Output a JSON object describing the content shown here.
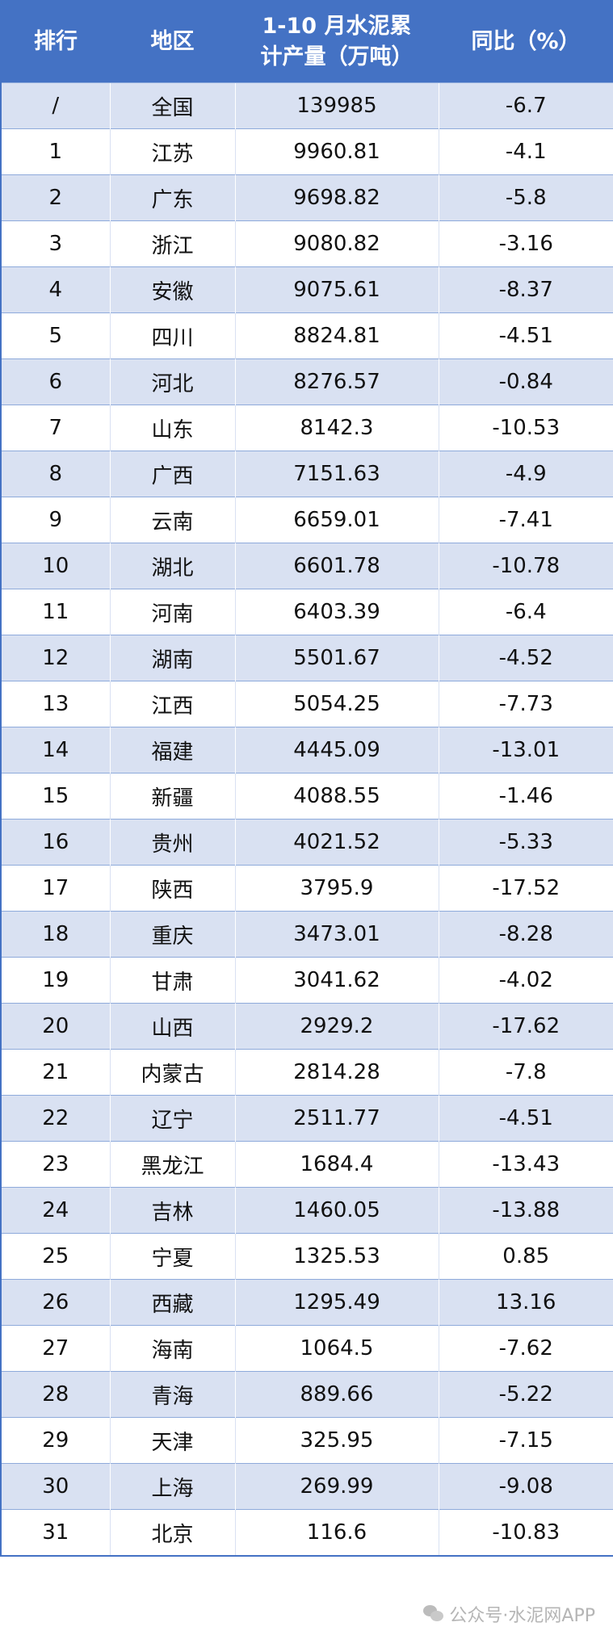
{
  "headers": [
    "排行",
    "地区",
    "1-10 月水泥累计产量（万吨）",
    "同比（%）"
  ],
  "rows": [
    [
      "/",
      "全国",
      "139985",
      "-6.7"
    ],
    [
      "1",
      "江苏",
      "9960.81",
      "-4.1"
    ],
    [
      "2",
      "广东",
      "9698.82",
      "-5.8"
    ],
    [
      "3",
      "浙江",
      "9080.82",
      "-3.16"
    ],
    [
      "4",
      "安徽",
      "9075.61",
      "-8.37"
    ],
    [
      "5",
      "四川",
      "8824.81",
      "-4.51"
    ],
    [
      "6",
      "河北",
      "8276.57",
      "-0.84"
    ],
    [
      "7",
      "山东",
      "8142.3",
      "-10.53"
    ],
    [
      "8",
      "广西",
      "7151.63",
      "-4.9"
    ],
    [
      "9",
      "云南",
      "6659.01",
      "-7.41"
    ],
    [
      "10",
      "湖北",
      "6601.78",
      "-10.78"
    ],
    [
      "11",
      "河南",
      "6403.39",
      "-6.4"
    ],
    [
      "12",
      "湖南",
      "5501.67",
      "-4.52"
    ],
    [
      "13",
      "江西",
      "5054.25",
      "-7.73"
    ],
    [
      "14",
      "福建",
      "4445.09",
      "-13.01"
    ],
    [
      "15",
      "新疆",
      "4088.55",
      "-1.46"
    ],
    [
      "16",
      "贵州",
      "4021.52",
      "-5.33"
    ],
    [
      "17",
      "陕西",
      "3795.9",
      "-17.52"
    ],
    [
      "18",
      "重庆",
      "3473.01",
      "-8.28"
    ],
    [
      "19",
      "甘肃",
      "3041.62",
      "-4.02"
    ],
    [
      "20",
      "山西",
      "2929.2",
      "-17.62"
    ],
    [
      "21",
      "内蒙古",
      "2814.28",
      "-7.8"
    ],
    [
      "22",
      "辽宁",
      "2511.77",
      "-4.51"
    ],
    [
      "23",
      "黑龙江",
      "1684.4",
      "-13.43"
    ],
    [
      "24",
      "吉林",
      "1460.05",
      "-13.88"
    ],
    [
      "25",
      "宁夏",
      "1325.53",
      "0.85"
    ],
    [
      "26",
      "西藏",
      "1295.49",
      "13.16"
    ],
    [
      "27",
      "海南",
      "1064.5",
      "-7.62"
    ],
    [
      "28",
      "青海",
      "889.66",
      "-5.22"
    ],
    [
      "29",
      "天津",
      "325.95",
      "-7.15"
    ],
    [
      "30",
      "上海",
      "269.99",
      "-9.08"
    ],
    [
      "31",
      "北京",
      "116.6",
      "-10.83"
    ]
  ],
  "watermark": "公众号·水泥网APP",
  "colors": {
    "header_bg": "#4472c4",
    "alt_row_bg": "#d9e1f2"
  }
}
